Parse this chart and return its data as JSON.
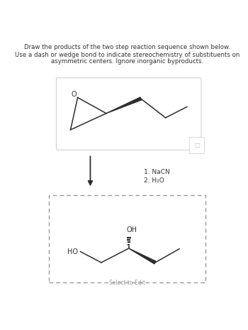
{
  "title_line1": "Draw the products of the two step reaction sequence shown below.",
  "title_line2_a": "Use a dash or wedge bond to indicate stereochemistry of substituents on",
  "title_line2_b": "asymmetric centers. Ignore inorganic byproducts.",
  "reagent1": "1. NaCN",
  "reagent2": "2. H₂O",
  "select_to_edit": "Select to Edit",
  "ho_label": "HO",
  "oh_label": "OH",
  "o_label": "O",
  "bg_color": "#ffffff",
  "line_color": "#2d2d2d",
  "text_color": "#333333",
  "box_edge_color": "#cccccc",
  "dash_box_color": "#999999"
}
